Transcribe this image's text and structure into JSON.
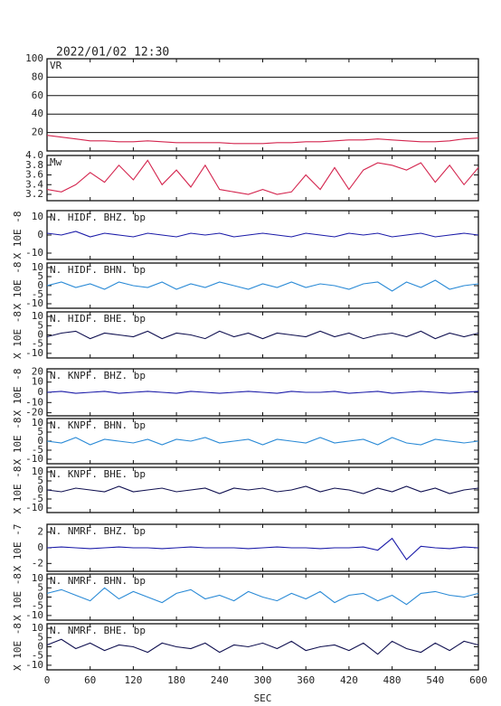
{
  "title": "2022/01/02 12:30",
  "chart_data": [
    {
      "type": "line",
      "label": "VR",
      "color": "#d4264f",
      "grid": true,
      "x": [
        0,
        20,
        40,
        60,
        80,
        100,
        120,
        140,
        160,
        180,
        200,
        220,
        240,
        260,
        280,
        300,
        320,
        340,
        360,
        380,
        400,
        420,
        440,
        460,
        480,
        500,
        520,
        540,
        560,
        580,
        600
      ],
      "xlim": [
        0,
        600
      ],
      "ylim": [
        0,
        100
      ],
      "yticks": [
        20,
        40,
        60,
        80,
        100
      ],
      "values": [
        17,
        15,
        13,
        11,
        11,
        10,
        10,
        11,
        10,
        9,
        9,
        9,
        9,
        8,
        8,
        8,
        9,
        9,
        10,
        10,
        11,
        12,
        12,
        13,
        12,
        11,
        10,
        10,
        11,
        13,
        14
      ]
    },
    {
      "type": "line",
      "label": "Mw",
      "color": "#d4264f",
      "x": [
        0,
        20,
        40,
        60,
        80,
        100,
        120,
        140,
        160,
        180,
        200,
        220,
        240,
        260,
        280,
        300,
        320,
        340,
        360,
        380,
        400,
        420,
        440,
        460,
        480,
        500,
        520,
        540,
        560,
        580,
        600
      ],
      "xlim": [
        0,
        600
      ],
      "ylim": [
        3.07,
        4.0
      ],
      "yticks": [
        {
          "value": 4.0,
          "label": "4.0"
        },
        3.8,
        3.6,
        3.4,
        3.2
      ],
      "values": [
        3.3,
        3.25,
        3.4,
        3.65,
        3.45,
        3.8,
        3.5,
        3.9,
        3.4,
        3.7,
        3.35,
        3.8,
        3.3,
        3.25,
        3.2,
        3.3,
        3.2,
        3.25,
        3.6,
        3.3,
        3.75,
        3.3,
        3.7,
        3.85,
        3.8,
        3.7,
        3.85,
        3.45,
        3.8,
        3.4,
        3.75
      ]
    },
    {
      "type": "line",
      "label": "N. HIDF. BHZ. bp",
      "ylabel": "X 10E -8",
      "color": "#1a1aa8",
      "x": [
        0,
        20,
        40,
        60,
        80,
        100,
        120,
        140,
        160,
        180,
        200,
        220,
        240,
        260,
        280,
        300,
        320,
        340,
        360,
        380,
        400,
        420,
        440,
        460,
        480,
        500,
        520,
        540,
        560,
        580,
        600
      ],
      "xlim": [
        0,
        600
      ],
      "ylim": [
        -13.5,
        13.5
      ],
      "yticks": [
        10,
        0,
        -10
      ],
      "values": [
        1,
        0,
        2,
        -1,
        1,
        0,
        -1,
        1,
        0,
        -1,
        1,
        0,
        1,
        -1,
        0,
        1,
        0,
        -1,
        1,
        0,
        -1,
        1,
        0,
        1,
        -1,
        0,
        1,
        -1,
        0,
        1,
        0
      ]
    },
    {
      "type": "line",
      "label": "N. HIDF. BHN. bp",
      "ylabel": "X 10E -8",
      "color": "#2a8ad6",
      "x": [
        0,
        20,
        40,
        60,
        80,
        100,
        120,
        140,
        160,
        180,
        200,
        220,
        240,
        260,
        280,
        300,
        320,
        340,
        360,
        380,
        400,
        420,
        440,
        460,
        480,
        500,
        520,
        540,
        560,
        580,
        600
      ],
      "xlim": [
        0,
        600
      ],
      "ylim": [
        -12.5,
        12.5
      ],
      "yticks": [
        10,
        5,
        0,
        -5,
        -10
      ],
      "values": [
        0,
        2,
        -1,
        1,
        -2,
        2,
        0,
        -1,
        2,
        -2,
        1,
        -1,
        2,
        0,
        -2,
        1,
        -1,
        2,
        -1,
        1,
        0,
        -2,
        1,
        2,
        -3,
        2,
        -1,
        3,
        -2,
        0,
        1
      ]
    },
    {
      "type": "line",
      "label": "N. HIDF. BHE. bp",
      "ylabel": "X 10E -8",
      "color": "#101050",
      "x": [
        0,
        20,
        40,
        60,
        80,
        100,
        120,
        140,
        160,
        180,
        200,
        220,
        240,
        260,
        280,
        300,
        320,
        340,
        360,
        380,
        400,
        420,
        440,
        460,
        480,
        500,
        520,
        540,
        560,
        580,
        600
      ],
      "xlim": [
        0,
        600
      ],
      "ylim": [
        -12.5,
        12.5
      ],
      "yticks": [
        10,
        5,
        0,
        -5,
        -10
      ],
      "values": [
        -1,
        1,
        2,
        -2,
        1,
        0,
        -1,
        2,
        -2,
        1,
        0,
        -2,
        2,
        -1,
        1,
        -2,
        1,
        0,
        -1,
        2,
        -1,
        1,
        -2,
        0,
        1,
        -1,
        2,
        -2,
        1,
        -1,
        1
      ]
    },
    {
      "type": "line",
      "label": "N. KNPF. BHZ. bp",
      "ylabel": "X 10E -8",
      "color": "#1a1aa8",
      "x": [
        0,
        20,
        40,
        60,
        80,
        100,
        120,
        140,
        160,
        180,
        200,
        220,
        240,
        260,
        280,
        300,
        320,
        340,
        360,
        380,
        400,
        420,
        440,
        460,
        480,
        500,
        520,
        540,
        560,
        580,
        600
      ],
      "xlim": [
        0,
        600
      ],
      "ylim": [
        -23,
        23
      ],
      "yticks": [
        20,
        10,
        0,
        -10,
        -20
      ],
      "values": [
        0,
        1,
        -1,
        0,
        1,
        -1,
        0,
        1,
        0,
        -1,
        1,
        0,
        -1,
        0,
        1,
        0,
        -1,
        1,
        0,
        0,
        1,
        -1,
        0,
        1,
        -1,
        0,
        1,
        0,
        -1,
        0,
        1
      ]
    },
    {
      "type": "line",
      "label": "N. KNPF. BHN. bp",
      "ylabel": "X 10E -8",
      "color": "#2a8ad6",
      "x": [
        0,
        20,
        40,
        60,
        80,
        100,
        120,
        140,
        160,
        180,
        200,
        220,
        240,
        260,
        280,
        300,
        320,
        340,
        360,
        380,
        400,
        420,
        440,
        460,
        480,
        500,
        520,
        540,
        560,
        580,
        600
      ],
      "xlim": [
        0,
        600
      ],
      "ylim": [
        -12.5,
        12.5
      ],
      "yticks": [
        10,
        5,
        0,
        -5,
        -10
      ],
      "values": [
        0,
        -1,
        2,
        -2,
        1,
        0,
        -1,
        1,
        -2,
        1,
        0,
        2,
        -1,
        0,
        1,
        -2,
        1,
        0,
        -1,
        2,
        -1,
        0,
        1,
        -2,
        2,
        -1,
        -2,
        1,
        0,
        -1,
        0
      ]
    },
    {
      "type": "line",
      "label": "N. KNPF. BHE. bp",
      "ylabel": "X 10E -8",
      "color": "#101050",
      "x": [
        0,
        20,
        40,
        60,
        80,
        100,
        120,
        140,
        160,
        180,
        200,
        220,
        240,
        260,
        280,
        300,
        320,
        340,
        360,
        380,
        400,
        420,
        440,
        460,
        480,
        500,
        520,
        540,
        560,
        580,
        600
      ],
      "xlim": [
        0,
        600
      ],
      "ylim": [
        -12.5,
        12.5
      ],
      "yticks": [
        10,
        5,
        0,
        -5,
        -10
      ],
      "values": [
        0,
        -1,
        1,
        0,
        -1,
        2,
        -1,
        0,
        1,
        -1,
        0,
        1,
        -2,
        1,
        0,
        1,
        -1,
        0,
        2,
        -1,
        1,
        0,
        -2,
        1,
        -1,
        2,
        -1,
        1,
        -2,
        0,
        1
      ]
    },
    {
      "type": "line",
      "label": "N. NMRF. BHZ. bp",
      "ylabel": "X 10E -7",
      "color": "#1a1aa8",
      "x": [
        0,
        20,
        40,
        60,
        80,
        100,
        120,
        140,
        160,
        180,
        200,
        220,
        240,
        260,
        280,
        300,
        320,
        340,
        360,
        380,
        400,
        420,
        440,
        460,
        480,
        500,
        520,
        540,
        560,
        580,
        600
      ],
      "xlim": [
        0,
        600
      ],
      "ylim": [
        -3,
        3
      ],
      "yticks": [
        2,
        0,
        -2
      ],
      "values": [
        0,
        0.1,
        0,
        -0.1,
        0,
        0.1,
        0,
        0,
        -0.1,
        0,
        0.1,
        0,
        0,
        0,
        -0.1,
        0,
        0.1,
        0,
        0,
        -0.1,
        0,
        0,
        0.1,
        -0.3,
        1.2,
        -1.5,
        0.2,
        0,
        -0.1,
        0.1,
        0
      ]
    },
    {
      "type": "line",
      "label": "N. NMRF. BHN. bp",
      "ylabel": "X 10E -8",
      "color": "#2a8ad6",
      "x": [
        0,
        20,
        40,
        60,
        80,
        100,
        120,
        140,
        160,
        180,
        200,
        220,
        240,
        260,
        280,
        300,
        320,
        340,
        360,
        380,
        400,
        420,
        440,
        460,
        480,
        500,
        520,
        540,
        560,
        580,
        600
      ],
      "xlim": [
        0,
        600
      ],
      "ylim": [
        -12.5,
        12.5
      ],
      "yticks": [
        10,
        5,
        0,
        -5,
        -10
      ],
      "values": [
        2,
        4,
        1,
        -2,
        5,
        -1,
        3,
        0,
        -3,
        2,
        4,
        -1,
        1,
        -2,
        3,
        0,
        -2,
        2,
        -1,
        3,
        -3,
        1,
        2,
        -2,
        1,
        -4,
        2,
        3,
        1,
        0,
        2
      ]
    },
    {
      "type": "line",
      "label": "N. NMRF. BHE. bp",
      "ylabel": "X 10E -8",
      "color": "#101050",
      "x": [
        0,
        20,
        40,
        60,
        80,
        100,
        120,
        140,
        160,
        180,
        200,
        220,
        240,
        260,
        280,
        300,
        320,
        340,
        360,
        380,
        400,
        420,
        440,
        460,
        480,
        500,
        520,
        540,
        560,
        580,
        600
      ],
      "xlim": [
        0,
        600
      ],
      "ylim": [
        -12.5,
        12.5
      ],
      "yticks": [
        10,
        5,
        0,
        -5,
        -10
      ],
      "values": [
        1,
        4,
        -1,
        2,
        -2,
        1,
        0,
        -3,
        2,
        0,
        -1,
        2,
        -3,
        1,
        0,
        2,
        -1,
        3,
        -2,
        0,
        1,
        -2,
        2,
        -4,
        3,
        -1,
        -3,
        2,
        -2,
        3,
        1
      ],
      "xticks": [
        0,
        60,
        120,
        180,
        240,
        300,
        360,
        420,
        480,
        540,
        600
      ],
      "xlabel": "SEC"
    }
  ]
}
